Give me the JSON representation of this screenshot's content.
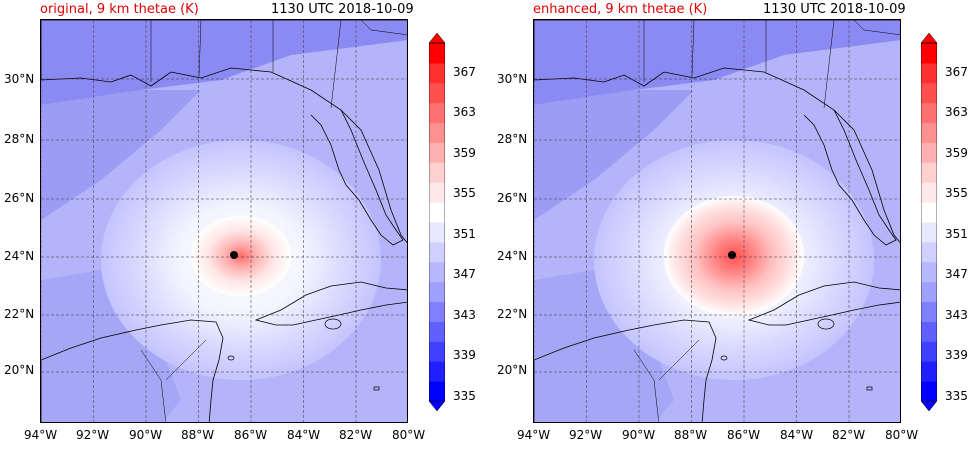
{
  "panels": [
    {
      "title_left": "original, 9 km thetae (K)",
      "title_right": "1130 UTC 2018-10-09",
      "core_intensity": 0.55
    },
    {
      "title_left": "enhanced, 9 km thetae (K)",
      "title_right": "1130 UTC 2018-10-09",
      "core_intensity": 1.0
    }
  ],
  "axes": {
    "lon_ticks": [
      "94°W",
      "92°W",
      "90°W",
      "88°W",
      "86°W",
      "84°W",
      "82°W",
      "80°W"
    ],
    "lat_ticks": [
      "30°N",
      "28°N",
      "26°N",
      "24°N",
      "22°N",
      "20°N"
    ]
  },
  "colorbar": {
    "labels": [
      "367",
      "363",
      "359",
      "355",
      "351",
      "347",
      "343",
      "339",
      "335"
    ],
    "levels": [
      335,
      337,
      339,
      341,
      343,
      345,
      347,
      349,
      351,
      353,
      355,
      357,
      359,
      361,
      363,
      365,
      367,
      369
    ],
    "colors": [
      "#0000ff",
      "#2020ff",
      "#4040ff",
      "#6060ff",
      "#8080ff",
      "#a0a0ff",
      "#b8b8ff",
      "#d0d0ff",
      "#e8e8ff",
      "#ffffff",
      "#ffe8e8",
      "#ffd0d0",
      "#ffb0b0",
      "#ff9090",
      "#ff7070",
      "#ff5050",
      "#ff3030",
      "#ff0000"
    ]
  },
  "markers": [
    {
      "name": "storm-center",
      "lon": "86.6°W",
      "lat": "24.0°N"
    }
  ]
}
